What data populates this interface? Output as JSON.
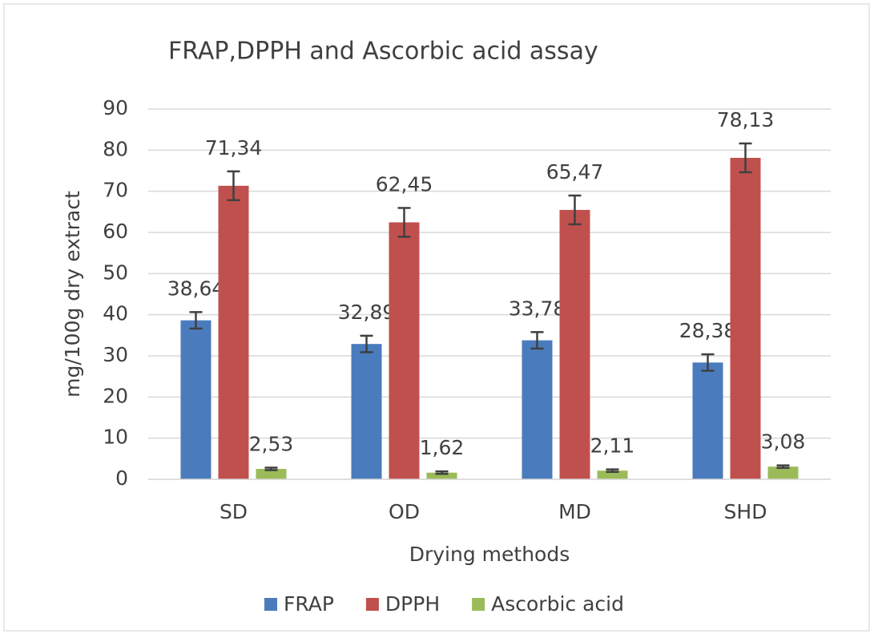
{
  "chart_data": {
    "type": "bar",
    "title": "FRAP,DPPH and Ascorbic acid assay",
    "x_label": "Drying methods",
    "y_label": "mg/100g dry extract",
    "categories": [
      "SD",
      "OD",
      "MD",
      "SHD"
    ],
    "series": [
      {
        "name": "FRAP",
        "color": "#4a7bbd",
        "values": [
          38.64,
          32.89,
          33.78,
          28.38
        ],
        "value_labels": [
          "38,64",
          "32,89",
          "33,78",
          "28,38"
        ],
        "errors": [
          2,
          2,
          2,
          2
        ]
      },
      {
        "name": "DPPH",
        "color": "#c0504d",
        "values": [
          71.34,
          62.45,
          65.47,
          78.13
        ],
        "value_labels": [
          "71,34",
          "62,45",
          "65,47",
          "78,13"
        ],
        "errors": [
          3.5,
          3.5,
          3.5,
          3.5
        ]
      },
      {
        "name": "Ascorbic acid",
        "color": "#9bbb59",
        "values": [
          2.53,
          1.62,
          2.11,
          3.08
        ],
        "value_labels": [
          "2,53",
          "1,62",
          "2,11",
          "3,08"
        ],
        "errors": [
          0.3,
          0.3,
          0.3,
          0.3
        ]
      }
    ],
    "ylim": [
      0,
      90
    ],
    "yticks": [
      0,
      10,
      20,
      30,
      40,
      50,
      60,
      70,
      80,
      90
    ],
    "grid": true,
    "legend": "bottom"
  }
}
